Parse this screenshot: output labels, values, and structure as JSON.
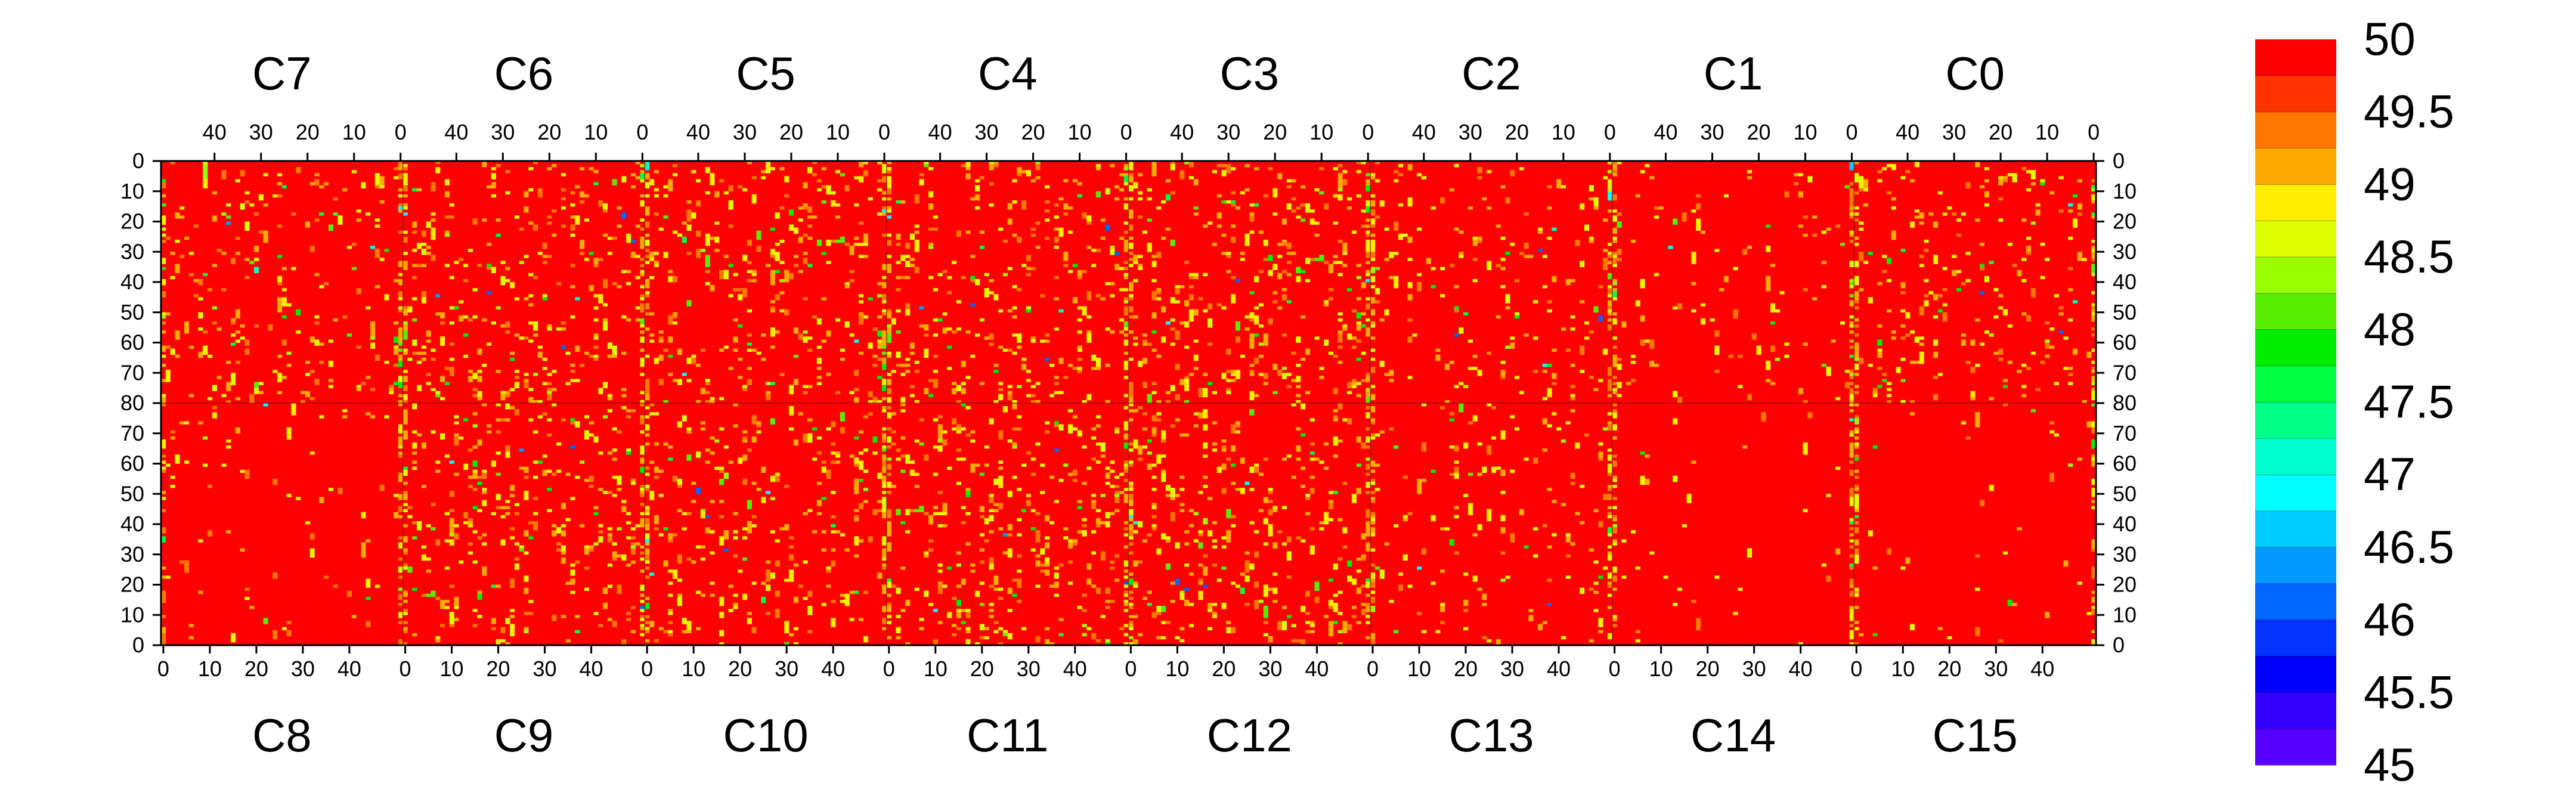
{
  "chart_data": {
    "type": "heatmap",
    "title": "",
    "xlabel": "",
    "ylabel": "",
    "chip_labels": {
      "top": [
        "C7",
        "C6",
        "C5",
        "C4",
        "C3",
        "C2",
        "C1",
        "C0"
      ],
      "bottom": [
        "C8",
        "C9",
        "C10",
        "C11",
        "C12",
        "C13",
        "C14",
        "C15"
      ]
    },
    "columns_per_chip": 52,
    "rows_per_half": 80,
    "x_ticks": {
      "top": [
        "40",
        "30",
        "20",
        "10",
        "0"
      ],
      "bottom": [
        "0",
        "10",
        "20",
        "30",
        "40"
      ]
    },
    "y_ticks": {
      "top_half": [
        "0",
        "10",
        "20",
        "30",
        "40",
        "50",
        "60",
        "70",
        "80"
      ],
      "bottom_half": [
        "70",
        "60",
        "50",
        "40",
        "30",
        "20",
        "10",
        "0"
      ]
    },
    "zlim": [
      45,
      50
    ],
    "colorbar": {
      "labels": [
        "50",
        "49.5",
        "49",
        "48.5",
        "48",
        "47.5",
        "47",
        "46.5",
        "46",
        "45.5",
        "45"
      ],
      "colors": [
        "#ff0000",
        "#ff3300",
        "#ff7700",
        "#ffaa00",
        "#ffee00",
        "#ddff00",
        "#99ff00",
        "#55ee00",
        "#00ee00",
        "#00ff44",
        "#00ff88",
        "#00ffcc",
        "#00ffff",
        "#00ccff",
        "#0099ff",
        "#0066ff",
        "#0033ff",
        "#0000ff",
        "#3300ff",
        "#5500ff"
      ]
    },
    "dominant_value": 50,
    "chip_outlier_density": {
      "C7": 0.05,
      "C6": 0.07,
      "C5": 0.08,
      "C4": 0.07,
      "C3": 0.09,
      "C2": 0.04,
      "C1": 0.03,
      "C0": 0.05,
      "C8": 0.02,
      "C9": 0.07,
      "C10": 0.07,
      "C11": 0.08,
      "C12": 0.08,
      "C13": 0.03,
      "C14": 0.01,
      "C15": 0.01
    },
    "edge_column_outlier_density": 0.35,
    "grid": false,
    "legend": "colorbar-right"
  }
}
